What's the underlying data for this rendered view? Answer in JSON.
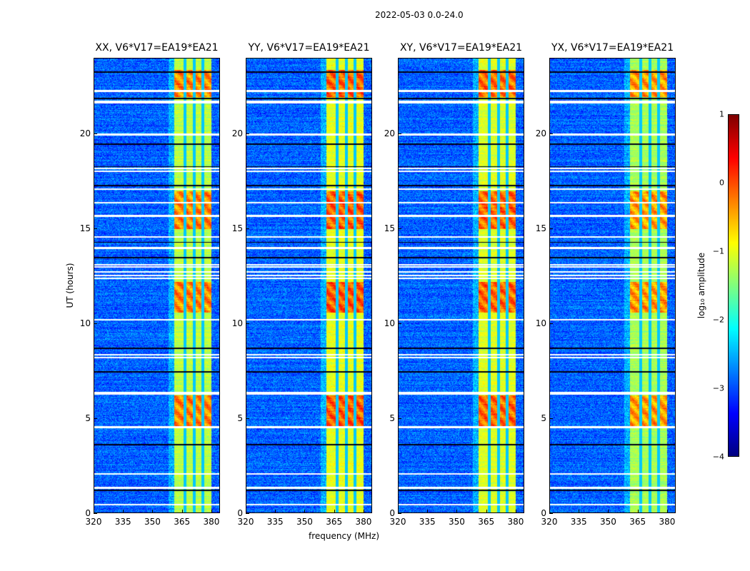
{
  "chart_data": {
    "type": "heatmap",
    "suptitle": "2022-05-03 0.0-24.0",
    "xlabel": "frequency (MHz)",
    "ylabel": "UT (hours)",
    "xlim": [
      320,
      384.4
    ],
    "ylim": [
      0,
      24
    ],
    "xticks": [
      "320",
      "335",
      "350",
      "365",
      "380"
    ],
    "xtick_values": [
      320,
      335,
      350,
      365,
      380
    ],
    "yticks": [
      "0",
      "5",
      "10",
      "15",
      "20"
    ],
    "ytick_values": [
      0,
      5,
      10,
      15,
      20
    ],
    "panels": [
      {
        "title": "XX, V6*V17=EA19*EA21",
        "band_boost": 0.0
      },
      {
        "title": "YY, V6*V17=EA19*EA21",
        "band_boost": 0.2
      },
      {
        "title": "XY, V6*V17=EA19*EA21",
        "band_boost": 0.15
      },
      {
        "title": "YX, V6*V17=EA19*EA21",
        "band_boost": -0.1
      }
    ],
    "rfi_band_mhz": [
      361,
      380
    ],
    "band_gaps_mhz": [
      366.5,
      371.2,
      375.8
    ],
    "hot_intervals_hours": [
      [
        4.6,
        6.2
      ],
      [
        10.6,
        12.2
      ],
      [
        22.0,
        23.4
      ],
      [
        15.0,
        17.0
      ]
    ],
    "flagged_white_hours": [
      0.45,
      1.3,
      1.35,
      2.05,
      4.5,
      4.55,
      6.3,
      6.35,
      8.2,
      8.35,
      10.2,
      12.4,
      12.55,
      12.75,
      13.0,
      13.1,
      14.0,
      14.6,
      15.7,
      16.4,
      17.1,
      18.05,
      18.2,
      20.0,
      21.7,
      21.75,
      22.3
    ],
    "flagged_black_hours": [
      1.2,
      3.6,
      8.7,
      7.45,
      13.5,
      14.3,
      17.3,
      18.3,
      19.5,
      23.3,
      21.9
    ],
    "colormap": "jet",
    "colorbar": {
      "label": "log₁₀ amplitude",
      "ticks": [
        "1",
        "0",
        "−1",
        "−2",
        "−3",
        "−4"
      ],
      "tick_values": [
        1,
        0,
        -1,
        -2,
        -3,
        -4
      ],
      "range": [
        -4,
        1
      ]
    },
    "background_level": -2.9
  }
}
